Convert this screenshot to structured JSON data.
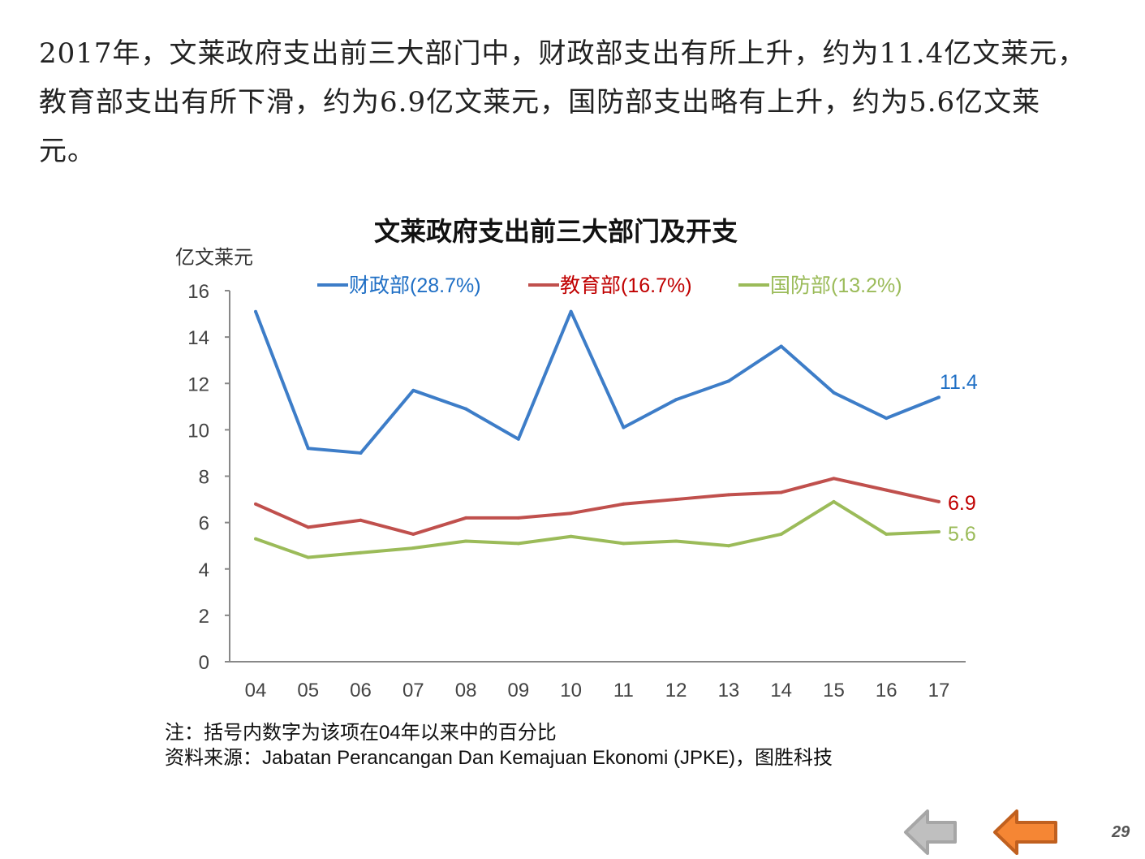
{
  "intro_text": "2017年，文莱政府支出前三大部门中，财政部支出有所上升，约为11.4亿文莱元，教育部支出有所下滑，约为6.9亿文莱元，国防部支出略有上升，约为5.6亿文莱元。",
  "chart_data": {
    "type": "line",
    "title": "文莱政府支出前三大部门及开支",
    "ylabel": "亿文莱元",
    "xlabel": "",
    "ylim": [
      0,
      16
    ],
    "yticks": [
      0,
      2,
      4,
      6,
      8,
      10,
      12,
      14,
      16
    ],
    "categories": [
      "04",
      "05",
      "06",
      "07",
      "08",
      "09",
      "10",
      "11",
      "12",
      "13",
      "14",
      "15",
      "16",
      "17"
    ],
    "legend_position": "top",
    "series": [
      {
        "name": "财政部(28.7%)",
        "color": "#3D7DC8",
        "values": [
          15.1,
          9.2,
          9.0,
          11.7,
          10.9,
          9.6,
          15.1,
          10.1,
          11.3,
          12.1,
          13.6,
          11.6,
          10.5,
          11.4
        ],
        "end_label": "11.4",
        "label_color": "#1F6FC5"
      },
      {
        "name": "教育部(16.7%)",
        "color": "#C0504D",
        "values": [
          6.8,
          5.8,
          6.1,
          5.5,
          6.2,
          6.2,
          6.4,
          6.8,
          7.0,
          7.2,
          7.3,
          7.9,
          7.4,
          6.9
        ],
        "end_label": "6.9",
        "label_color": "#C00000"
      },
      {
        "name": "国防部(13.2%)",
        "color": "#9BBB59",
        "values": [
          5.3,
          4.5,
          4.7,
          4.9,
          5.2,
          5.1,
          5.4,
          5.1,
          5.2,
          5.0,
          5.5,
          6.9,
          5.5,
          5.6
        ],
        "end_label": "5.6",
        "label_color": "#9BBB59"
      }
    ]
  },
  "notes": {
    "note": "注：括号内数字为该项在04年以来中的百分比",
    "source": "资料来源：Jabatan Perancangan Dan Kemajuan Ekonomi (JPKE)，图胜科技"
  },
  "nav": {
    "page_number": "29",
    "back_color": "#A6A6A6",
    "prev_color": "#F58634"
  }
}
